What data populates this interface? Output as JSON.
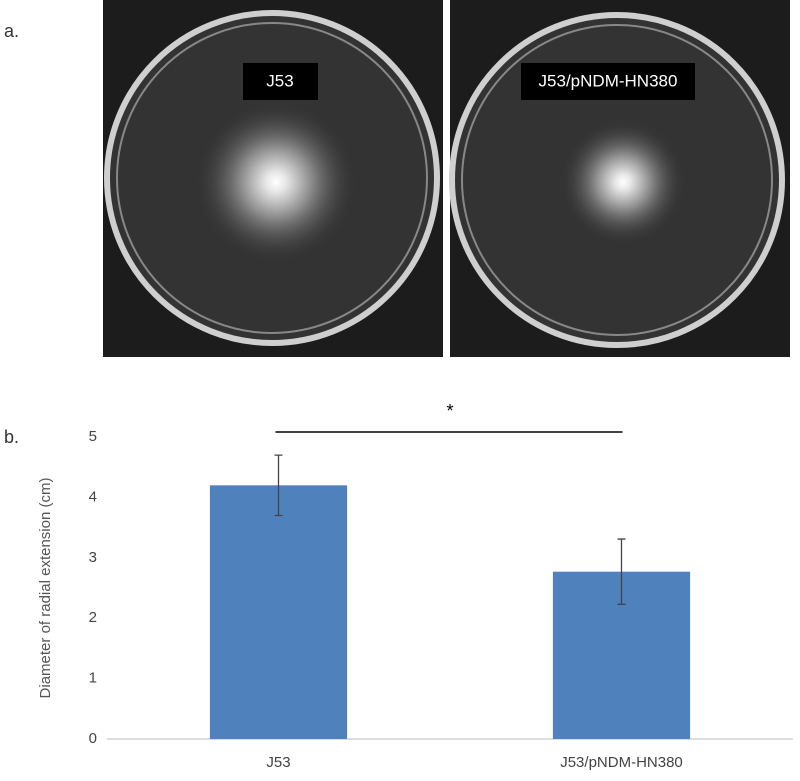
{
  "panels": {
    "a": "a.",
    "b": "b."
  },
  "plates": [
    "J53",
    "J53/pNDM-HN380"
  ],
  "chart_data": {
    "type": "bar",
    "y_label": "Diameter of radial extension (cm)",
    "categories": [
      "J53",
      "J53/pNDM-HN380"
    ],
    "values": [
      4.2,
      2.77
    ],
    "errors": [
      0.5,
      0.54
    ],
    "color": "#4f81bd",
    "ylim": [
      0,
      5
    ],
    "yticks": [
      0,
      1,
      2,
      3,
      4,
      5
    ],
    "grid": false,
    "annotation": "*"
  }
}
